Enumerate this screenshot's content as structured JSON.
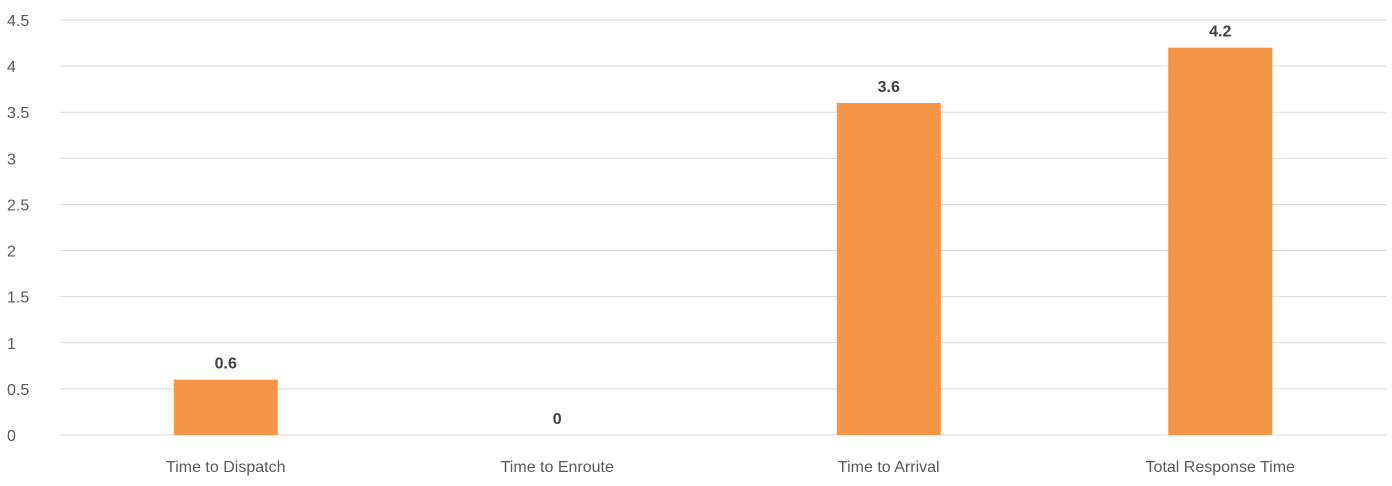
{
  "chart_data": {
    "type": "bar",
    "title": "",
    "xlabel": "",
    "ylabel": "",
    "categories": [
      "Time to Dispatch",
      "Time to Enroute",
      "Time to Arrival",
      "Total Response Time"
    ],
    "series": [
      {
        "values": [
          0.6,
          0,
          3.6,
          4.2
        ]
      }
    ],
    "data_labels": [
      "0.6",
      "0",
      "3.6",
      "4.2"
    ],
    "ylim": [
      0,
      4.5
    ],
    "y_ticks": [
      "0",
      "0.5",
      "1",
      "1.5",
      "2",
      "2.5",
      "3",
      "3.5",
      "4",
      "4.5"
    ],
    "grid": true,
    "legend": "none",
    "colors": {
      "bar": "#F79646",
      "grid": "#D9D9D9",
      "axis_text": "#595959",
      "data_label_text": "#404040"
    }
  }
}
